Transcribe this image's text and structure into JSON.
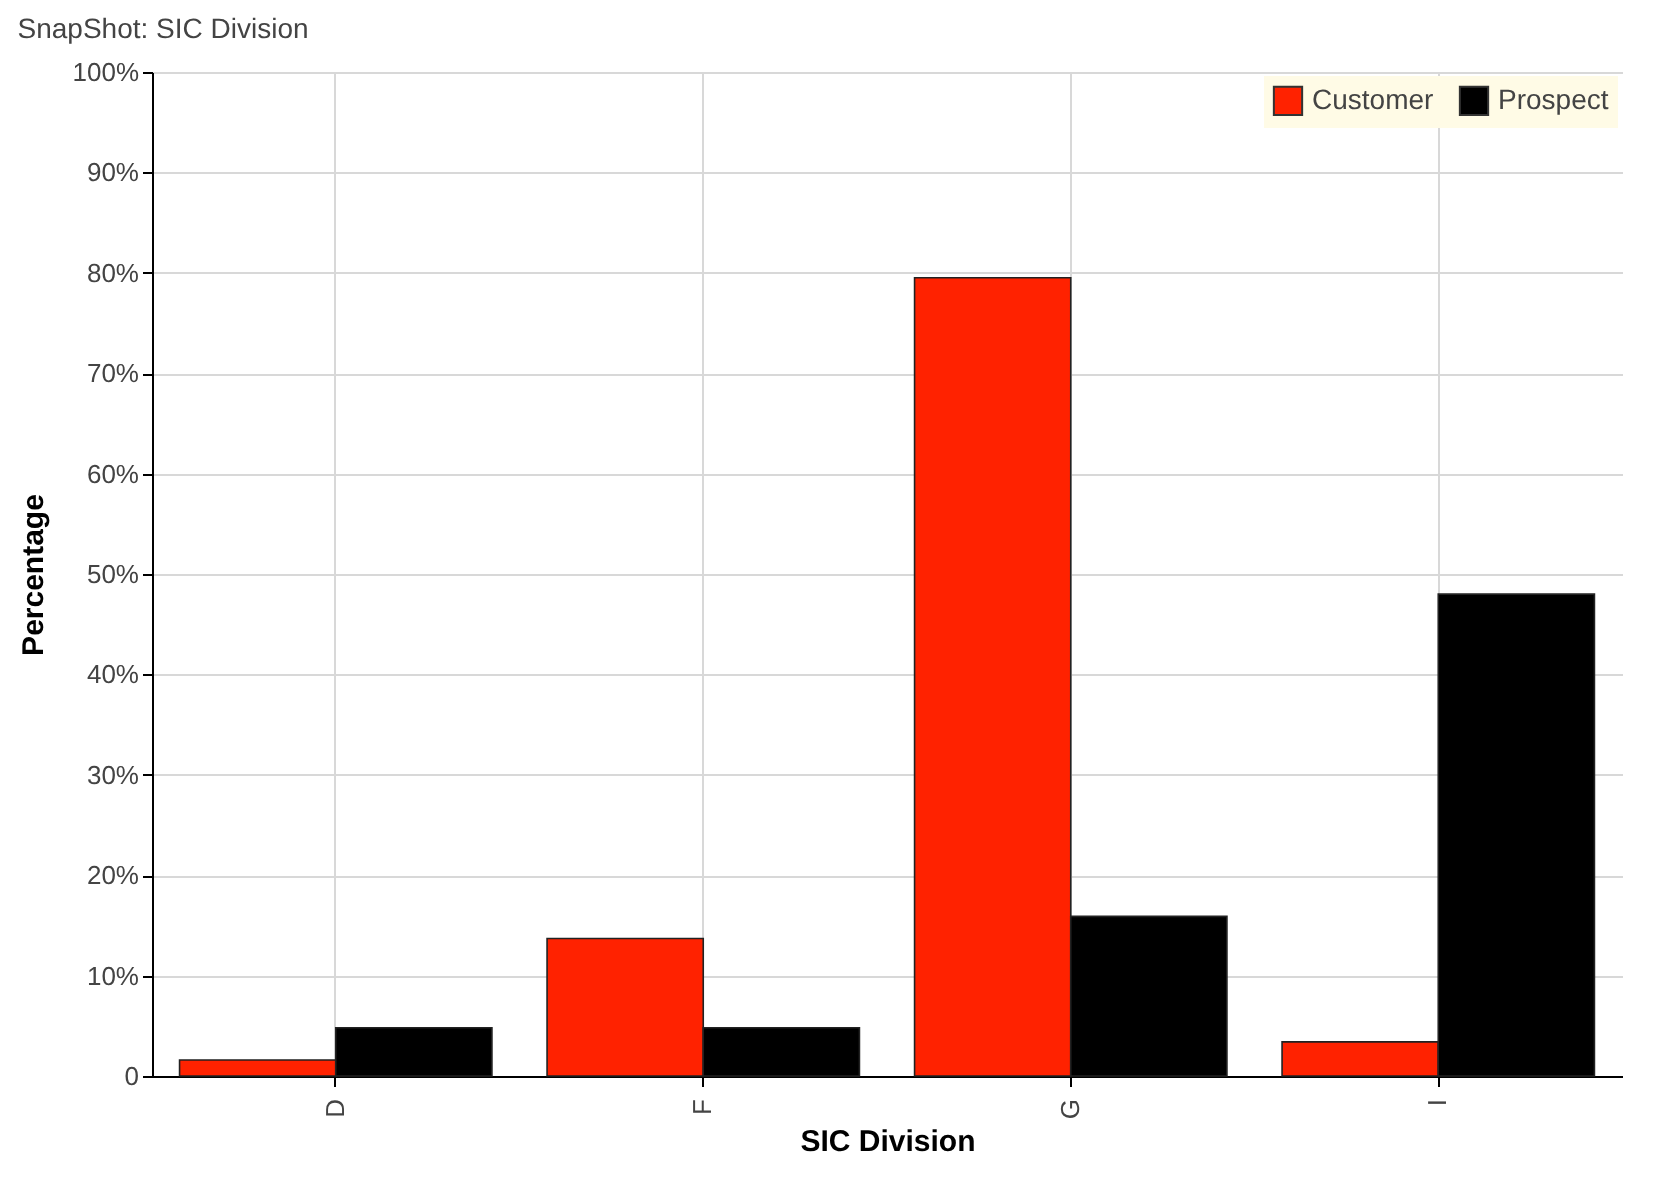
{
  "chart_data": {
    "type": "bar",
    "title": "SnapShot: SIC Division",
    "xlabel": "SIC Division",
    "ylabel": "Percentage",
    "categories": [
      "D",
      "F",
      "G",
      "I"
    ],
    "series": [
      {
        "name": "Customer",
        "color": "#ff2200",
        "values": [
          1.6,
          13.7,
          79.5,
          3.4
        ]
      },
      {
        "name": "Prospect",
        "color": "#000000",
        "values": [
          4.8,
          4.8,
          15.9,
          48
        ]
      }
    ],
    "ylim": [
      0,
      100
    ],
    "yticks": [
      0,
      {
        "value": 10,
        "label": "10%"
      },
      {
        "value": 20,
        "label": "20%"
      },
      {
        "value": 30,
        "label": "30%"
      },
      {
        "value": 40,
        "label": "40%"
      },
      {
        "value": 50,
        "label": "50%"
      },
      {
        "value": 60,
        "label": "60%"
      },
      {
        "value": 70,
        "label": "70%"
      },
      {
        "value": 80,
        "label": "80%"
      },
      {
        "value": 90,
        "label": "90%"
      },
      {
        "value": 100,
        "label": "100%"
      }
    ],
    "grid": true,
    "legend": "top right"
  }
}
